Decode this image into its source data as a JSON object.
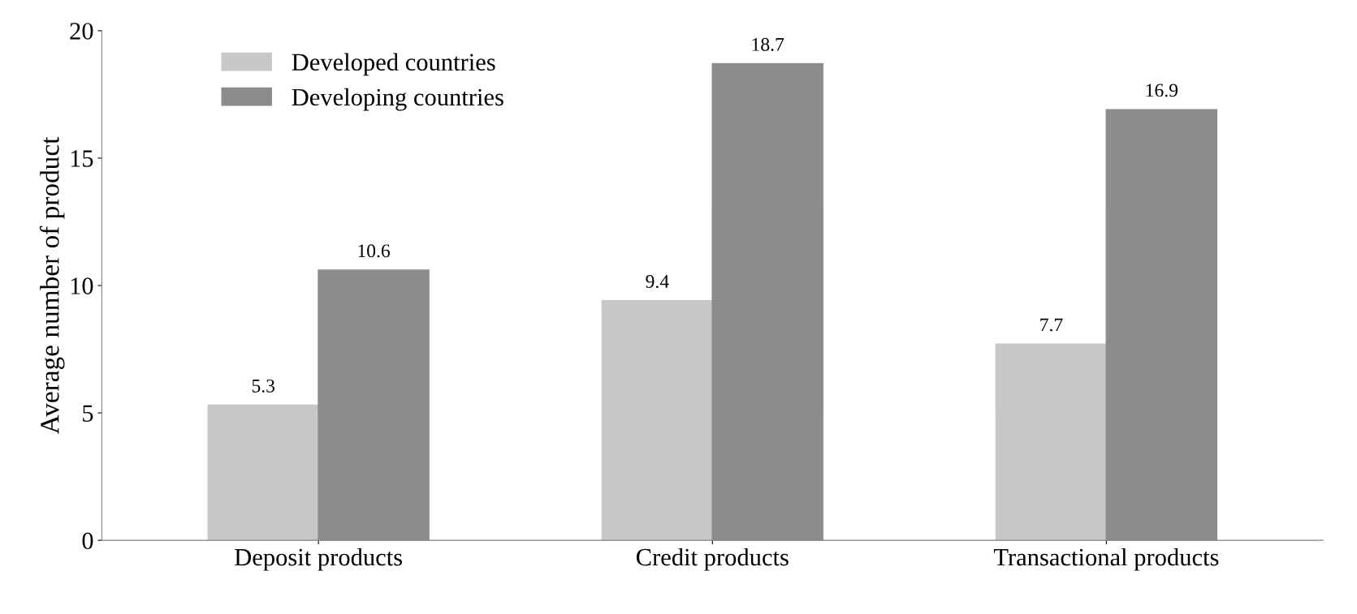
{
  "chart_data": {
    "type": "bar",
    "ylabel": "Average number of product",
    "categories": [
      "Deposit products",
      "Credit products",
      "Transactional products"
    ],
    "series": [
      {
        "name": "Developed countries",
        "color": "#c8c8c8",
        "values": [
          5.3,
          9.4,
          7.7
        ]
      },
      {
        "name": "Developing countries",
        "color": "#8c8c8c",
        "values": [
          10.6,
          18.7,
          16.9
        ]
      }
    ],
    "ylim": [
      0,
      20
    ],
    "yticks": [
      0,
      5,
      10,
      15,
      20
    ],
    "grid": false,
    "legend": "top left",
    "data_labels": true
  }
}
